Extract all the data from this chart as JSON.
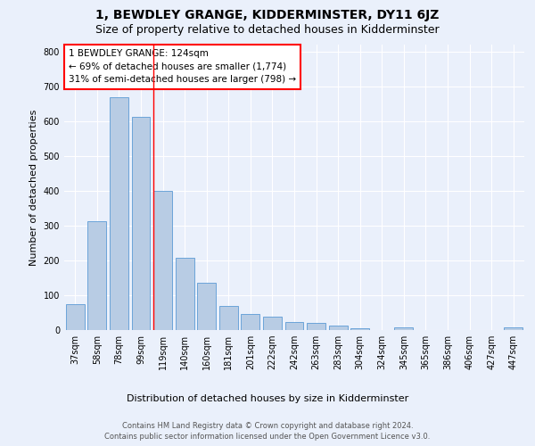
{
  "title": "1, BEWDLEY GRANGE, KIDDERMINSTER, DY11 6JZ",
  "subtitle": "Size of property relative to detached houses in Kidderminster",
  "xlabel": "Distribution of detached houses by size in Kidderminster",
  "ylabel": "Number of detached properties",
  "footer_line1": "Contains HM Land Registry data © Crown copyright and database right 2024.",
  "footer_line2": "Contains public sector information licensed under the Open Government Licence v3.0.",
  "categories": [
    "37sqm",
    "58sqm",
    "78sqm",
    "99sqm",
    "119sqm",
    "140sqm",
    "160sqm",
    "181sqm",
    "201sqm",
    "222sqm",
    "242sqm",
    "263sqm",
    "283sqm",
    "304sqm",
    "324sqm",
    "345sqm",
    "365sqm",
    "386sqm",
    "406sqm",
    "427sqm",
    "447sqm"
  ],
  "values": [
    75,
    312,
    670,
    612,
    400,
    208,
    136,
    70,
    47,
    38,
    22,
    20,
    12,
    5,
    0,
    8,
    0,
    0,
    0,
    0,
    7
  ],
  "bar_color": "#b8cce4",
  "bar_edge_color": "#5b9bd5",
  "vline_index": 4,
  "vline_color": "red",
  "annotation_title": "1 BEWDLEY GRANGE: 124sqm",
  "annotation_line2": "← 69% of detached houses are smaller (1,774)",
  "annotation_line3": "31% of semi-detached houses are larger (798) →",
  "annotation_box_color": "white",
  "annotation_box_edge": "red",
  "ylim": [
    0,
    820
  ],
  "yticks": [
    0,
    100,
    200,
    300,
    400,
    500,
    600,
    700,
    800
  ],
  "background_color": "#eaf0fb",
  "plot_bg_color": "#eaf0fb",
  "grid_color": "white",
  "title_fontsize": 10,
  "subtitle_fontsize": 9,
  "axis_label_fontsize": 8,
  "tick_fontsize": 7,
  "annotation_fontsize": 7.5,
  "footer_fontsize": 6
}
